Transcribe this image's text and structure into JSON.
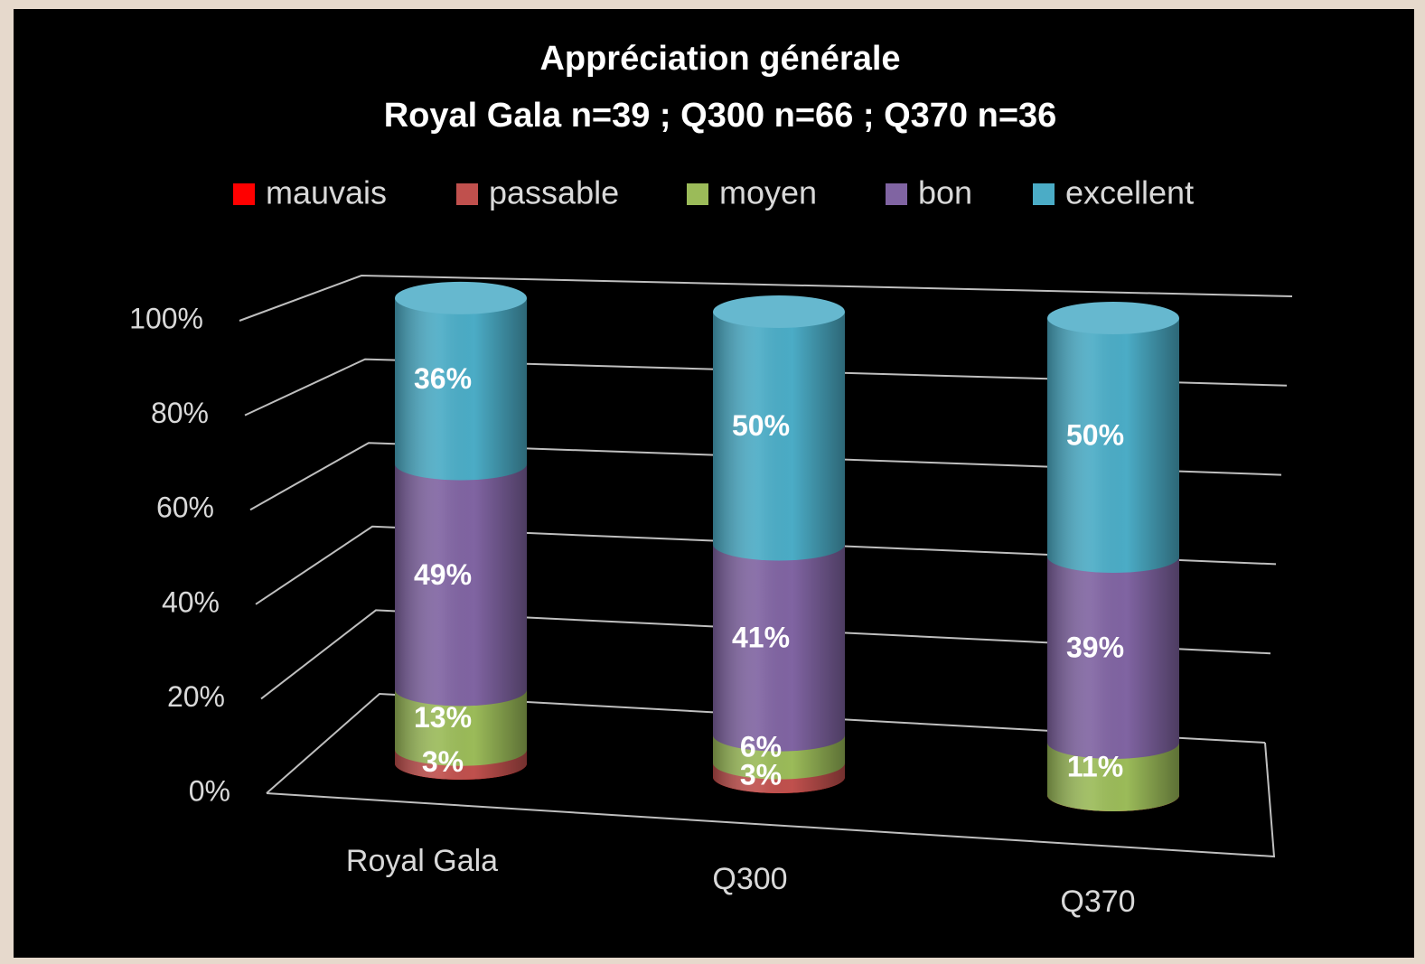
{
  "chart_data": {
    "type": "bar",
    "stacked": true,
    "title": "Appréciation générale",
    "subtitle": "Royal Gala n=39 ; Q300 n=66 ; Q370 n=36",
    "categories": [
      "Royal Gala",
      "Q300",
      "Q370"
    ],
    "series": [
      {
        "name": "mauvais",
        "color": "#ff0000",
        "values": [
          0,
          0,
          0
        ]
      },
      {
        "name": "passable",
        "color": "#c0504d",
        "values": [
          3,
          3,
          0
        ]
      },
      {
        "name": "moyen",
        "color": "#9bbb59",
        "values": [
          13,
          6,
          11
        ]
      },
      {
        "name": "bon",
        "color": "#8064a2",
        "values": [
          49,
          41,
          39
        ]
      },
      {
        "name": "excellent",
        "color": "#4bacc6",
        "values": [
          36,
          50,
          50
        ]
      }
    ],
    "ylim": [
      0,
      100
    ],
    "yticks": [
      {
        "value": 0,
        "label": "0%"
      },
      {
        "value": 20,
        "label": "20%"
      },
      {
        "value": 40,
        "label": "40%"
      },
      {
        "value": 60,
        "label": "60%"
      },
      {
        "value": 80,
        "label": "80%"
      },
      {
        "value": 100,
        "label": "100%"
      }
    ],
    "grid": true,
    "legend": "top"
  }
}
